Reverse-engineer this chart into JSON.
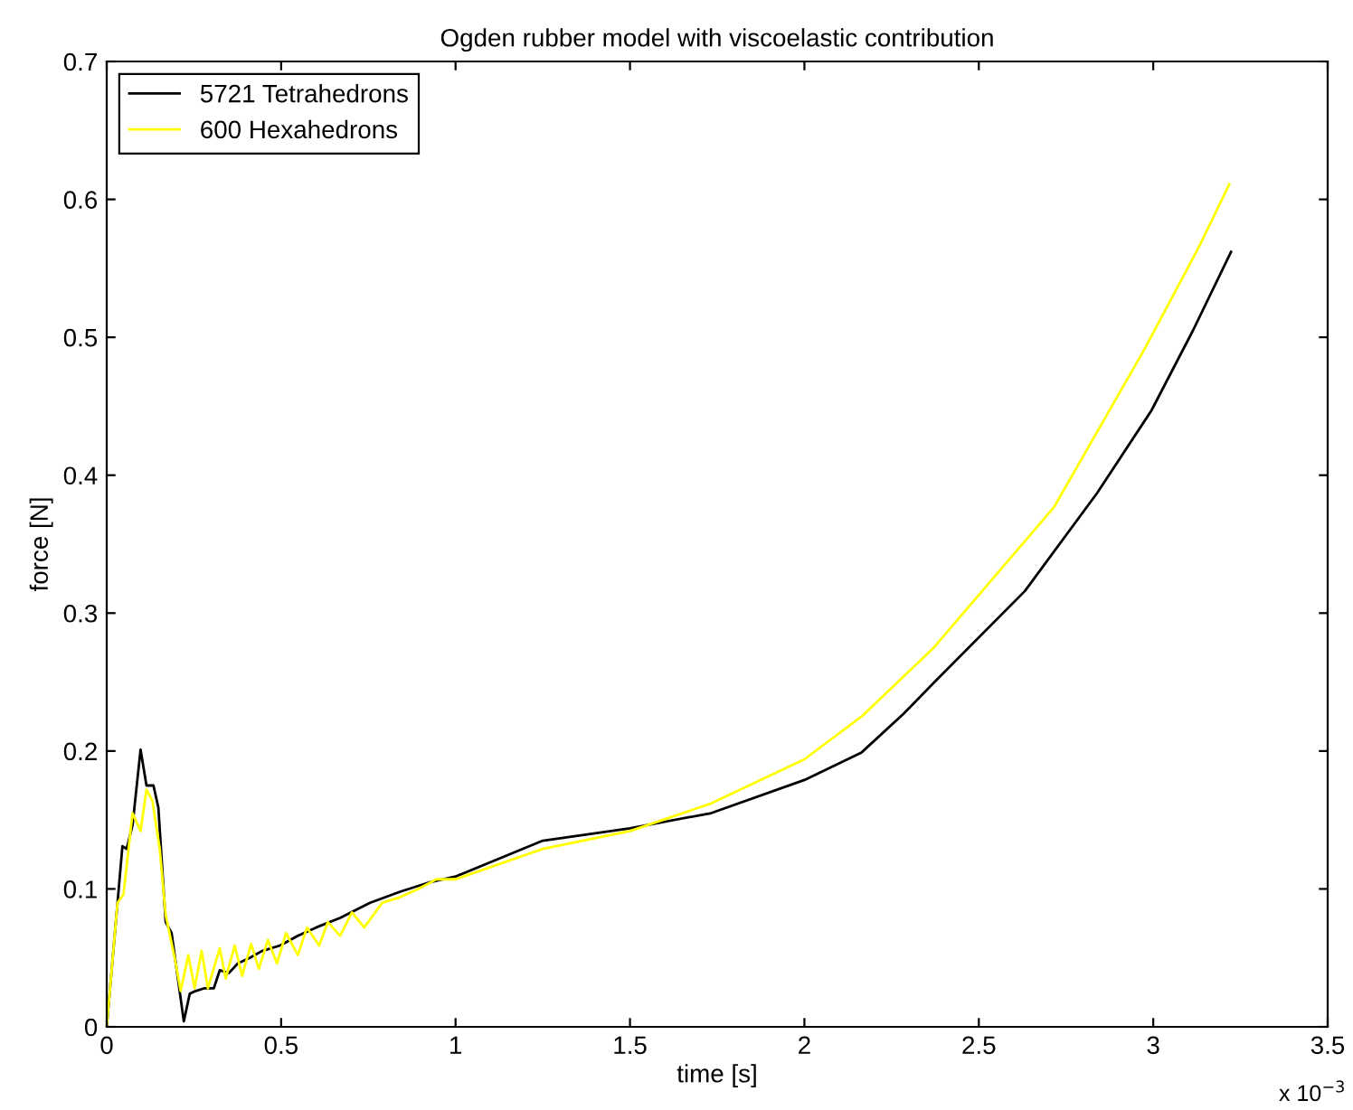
{
  "chart_data": {
    "type": "line",
    "title": "Ogden rubber model with viscoelastic contribution",
    "xlabel": "time [s]",
    "ylabel": "force [N]",
    "annotations": [
      "x 10$^{−3}$"
    ],
    "series": [
      {
        "name": "5721 Tetrahedrons",
        "color": "#000000",
        "x": [
          0,
          0.031,
          0.045,
          0.057,
          0.074,
          0.097,
          0.114,
          0.134,
          0.148,
          0.169,
          0.186,
          0.203,
          0.221,
          0.238,
          0.255,
          0.281,
          0.307,
          0.324,
          0.35,
          0.376,
          0.41,
          0.445,
          0.497,
          0.548,
          0.6,
          0.669,
          0.755,
          0.841,
          0.928,
          1.0,
          1.25,
          1.5,
          1.733,
          2.0,
          2.164,
          2.284,
          2.373,
          2.632,
          2.839,
          2.995,
          3.114,
          3.223
        ],
        "values": [
          0,
          0.09,
          0.131,
          0.129,
          0.146,
          0.201,
          0.175,
          0.175,
          0.159,
          0.076,
          0.068,
          0.037,
          0.004,
          0.024,
          0.026,
          0.028,
          0.028,
          0.041,
          0.039,
          0.046,
          0.05,
          0.055,
          0.059,
          0.066,
          0.072,
          0.079,
          0.09,
          0.098,
          0.105,
          0.109,
          0.135,
          0.144,
          0.155,
          0.179,
          0.199,
          0.227,
          0.25,
          0.316,
          0.387,
          0.447,
          0.505,
          0.562
        ]
      },
      {
        "name": "600 Hexahedrons",
        "color": "#ffff00",
        "x": [
          0,
          0.031,
          0.048,
          0.074,
          0.097,
          0.114,
          0.131,
          0.152,
          0.169,
          0.195,
          0.212,
          0.234,
          0.252,
          0.272,
          0.29,
          0.324,
          0.341,
          0.367,
          0.388,
          0.414,
          0.436,
          0.462,
          0.488,
          0.514,
          0.548,
          0.574,
          0.609,
          0.634,
          0.669,
          0.703,
          0.738,
          0.79,
          0.841,
          0.893,
          0.945,
          1.0,
          1.25,
          1.5,
          1.733,
          2.0,
          2.164,
          2.371,
          2.716,
          2.974,
          3.13,
          3.218
        ],
        "values": [
          0,
          0.09,
          0.096,
          0.155,
          0.142,
          0.172,
          0.164,
          0.129,
          0.081,
          0.05,
          0.026,
          0.052,
          0.028,
          0.055,
          0.028,
          0.057,
          0.035,
          0.059,
          0.037,
          0.06,
          0.042,
          0.063,
          0.046,
          0.068,
          0.052,
          0.072,
          0.059,
          0.076,
          0.066,
          0.083,
          0.072,
          0.09,
          0.094,
          0.1,
          0.107,
          0.107,
          0.129,
          0.142,
          0.162,
          0.194,
          0.225,
          0.275,
          0.377,
          0.491,
          0.565,
          0.611
        ]
      }
    ],
    "xlim": [
      0,
      3.5
    ],
    "xticks": [
      0,
      0.5,
      1,
      1.5,
      2,
      2.5,
      3,
      3.5
    ],
    "ylim": [
      0,
      0.7
    ],
    "yticks": [
      0,
      0.1,
      0.2,
      0.3,
      0.4,
      0.5,
      0.6,
      0.7
    ],
    "grid": false,
    "legend": "top left",
    "marker": "none",
    "line_style": "solid"
  }
}
